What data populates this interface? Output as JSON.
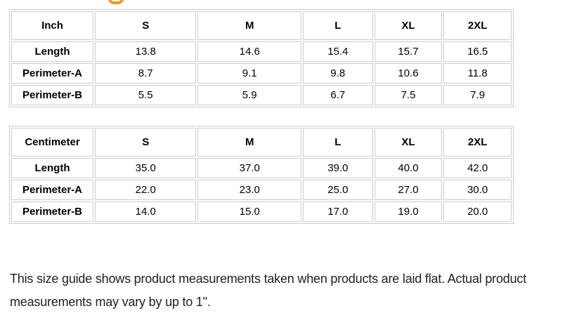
{
  "colors": {
    "heading_accent": "#f7941e",
    "table_border": "#cbcbcb",
    "body_text": "#212121"
  },
  "heading_fragment": {
    "description": "bottom-of-letter-g-fragment"
  },
  "tables": [
    {
      "unit": "Inch",
      "columns": [
        "S",
        "M",
        "L",
        "XL",
        "2XL"
      ],
      "rows": [
        {
          "label": "Length",
          "values": [
            "13.8",
            "14.6",
            "15.4",
            "15.7",
            "16.5"
          ]
        },
        {
          "label": "Perimeter-A",
          "values": [
            "8.7",
            "9.1",
            "9.8",
            "10.6",
            "11.8"
          ]
        },
        {
          "label": "Perimeter-B",
          "values": [
            "5.5",
            "5.9",
            "6.7",
            "7.5",
            "7.9"
          ]
        }
      ]
    },
    {
      "unit": "Centimeter",
      "columns": [
        "S",
        "M",
        "L",
        "XL",
        "2XL"
      ],
      "rows": [
        {
          "label": "Length",
          "values": [
            "35.0",
            "37.0",
            "39.0",
            "40.0",
            "42.0"
          ]
        },
        {
          "label": "Perimeter-A",
          "values": [
            "22.0",
            "23.0",
            "25.0",
            "27.0",
            "30.0"
          ]
        },
        {
          "label": "Perimeter-B",
          "values": [
            "14.0",
            "15.0",
            "17.0",
            "19.0",
            "20.0"
          ]
        }
      ]
    }
  ],
  "chart_data": {
    "type": "table",
    "tables": [
      {
        "title": "Inch",
        "columns": [
          "S",
          "M",
          "L",
          "XL",
          "2XL"
        ],
        "rows": {
          "Length": [
            13.8,
            14.6,
            15.4,
            15.7,
            16.5
          ],
          "Perimeter-A": [
            8.7,
            9.1,
            9.8,
            10.6,
            11.8
          ],
          "Perimeter-B": [
            5.5,
            5.9,
            6.7,
            7.5,
            7.9
          ]
        }
      },
      {
        "title": "Centimeter",
        "columns": [
          "S",
          "M",
          "L",
          "XL",
          "2XL"
        ],
        "rows": {
          "Length": [
            35.0,
            37.0,
            39.0,
            40.0,
            42.0
          ],
          "Perimeter-A": [
            22.0,
            23.0,
            25.0,
            27.0,
            30.0
          ],
          "Perimeter-B": [
            14.0,
            15.0,
            17.0,
            19.0,
            20.0
          ]
        }
      }
    ]
  },
  "note": {
    "lines": [
      "This size guide shows product measurements taken when products are laid flat. Actual product",
      "measurements may vary by up to 1\"."
    ]
  }
}
